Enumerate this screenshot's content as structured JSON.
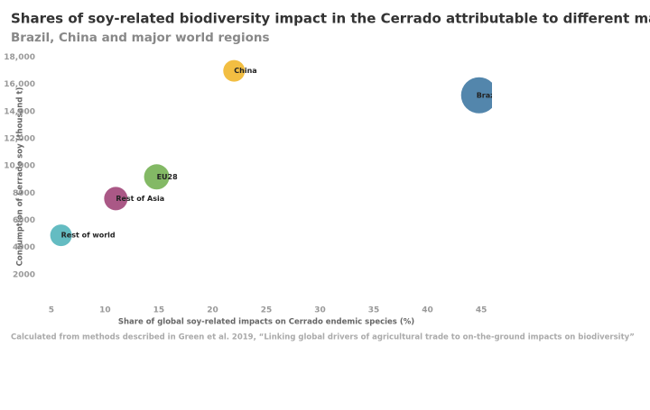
{
  "chart_data": {
    "type": "bubble",
    "title": "Shares of soy-related biodiversity impact in the Cerrado attributable to different markets",
    "subtitle": "Brazil, China and major world regions",
    "x_label": "Share of global soy-related impacts on Cerrado endemic species (%)",
    "y_label": "Consumption of Cerrado soy (thousand t)",
    "source": "Calculated from methods described in Green et al. 2019, “Linking global drivers of agricultural trade to on-the-ground impacts on biodiversity”",
    "categories": [
      "China",
      "Brazil",
      "EU28",
      "Rest of Asia",
      "Rest of world"
    ],
    "x": [
      22,
      44.8,
      14.8,
      11,
      5.9
    ],
    "values": [
      17000,
      15200,
      9200,
      7600,
      4900
    ],
    "sizes": [
      144,
      400,
      196,
      169,
      144
    ],
    "colors": [
      "#f1bb38",
      "#4a80a8",
      "#7cb55d",
      "#a54f80",
      "#5cb8bf"
    ],
    "xlim": [
      4,
      46
    ],
    "xticks": [
      5,
      10,
      15,
      20,
      25,
      30,
      35,
      40,
      45
    ],
    "ylim": [
      0,
      18500
    ],
    "yticks": [
      2000,
      4000,
      6000,
      8000,
      {
        "value": 10000,
        "label": "10,000"
      },
      {
        "value": 12000,
        "label": "12,000"
      },
      {
        "value": 14000,
        "label": "14,000"
      },
      {
        "value": 16000,
        "label": "16,000"
      },
      {
        "value": 18000,
        "label": "18,000"
      }
    ],
    "grid": false
  }
}
